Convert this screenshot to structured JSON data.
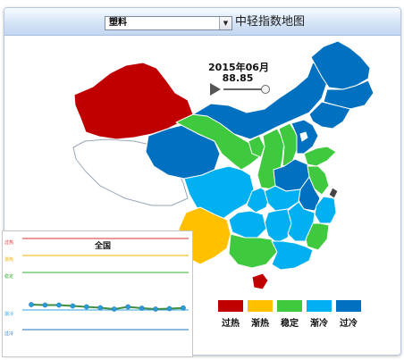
{
  "header": {
    "category_selected": "塑料",
    "title": "中轻指数地图"
  },
  "timeline": {
    "period": "2015年06月",
    "index_value": "88.85",
    "progress": 1.0
  },
  "colors": {
    "overheat": "#c00000",
    "warming": "#ffc000",
    "stable": "#3ec93e",
    "cooling": "#00b0f0",
    "overcool": "#0070c0",
    "unmapped": "#ffffff",
    "border": "#ffffff",
    "sea_islands": "#0070c0"
  },
  "legend": [
    {
      "label": "过热",
      "color": "#c00000"
    },
    {
      "label": "渐热",
      "color": "#ffc000"
    },
    {
      "label": "稳定",
      "color": "#3ec93e"
    },
    {
      "label": "渐冷",
      "color": "#00b0f0"
    },
    {
      "label": "过冷",
      "color": "#0070c0"
    }
  ],
  "mini_chart": {
    "title": "全国",
    "bands": [
      {
        "label": "过热",
        "color": "#e03030"
      },
      {
        "label": "渐热",
        "color": "#f0b000"
      },
      {
        "label": "稳定",
        "color": "#30b030"
      },
      {
        "label": "渐冷",
        "color": "#2fa0e0"
      },
      {
        "label": "过冷",
        "color": "#1e6fc0"
      }
    ],
    "series": {
      "values": [
        89.6,
        89.5,
        89.5,
        89.3,
        89.1,
        88.9,
        88.6,
        89.1,
        88.8,
        88.6,
        88.7,
        88.85
      ]
    }
  },
  "map_regions": [
    {
      "name": "xinjiang",
      "level": "overheat"
    },
    {
      "name": "tibet",
      "level": "unmapped"
    },
    {
      "name": "qinghai",
      "level": "overcool"
    },
    {
      "name": "gansu",
      "level": "stable"
    },
    {
      "name": "inner-mongolia",
      "level": "overcool"
    },
    {
      "name": "heilongjiang",
      "level": "overcool"
    },
    {
      "name": "jilin",
      "level": "overcool"
    },
    {
      "name": "liaoning",
      "level": "overcool"
    },
    {
      "name": "ningxia",
      "level": "stable"
    },
    {
      "name": "shaanxi",
      "level": "stable"
    },
    {
      "name": "shanxi",
      "level": "stable"
    },
    {
      "name": "hebei",
      "level": "overcool"
    },
    {
      "name": "beijing",
      "level": "unmapped"
    },
    {
      "name": "shandong",
      "level": "stable"
    },
    {
      "name": "henan",
      "level": "overcool"
    },
    {
      "name": "jiangsu",
      "level": "stable"
    },
    {
      "name": "anhui",
      "level": "overcool"
    },
    {
      "name": "shanghai",
      "level": "unmapped"
    },
    {
      "name": "zhejiang",
      "level": "cooling"
    },
    {
      "name": "sichuan",
      "level": "cooling"
    },
    {
      "name": "chongqing",
      "level": "cooling"
    },
    {
      "name": "hubei",
      "level": "cooling"
    },
    {
      "name": "hunan",
      "level": "cooling"
    },
    {
      "name": "jiangxi",
      "level": "cooling"
    },
    {
      "name": "fujian",
      "level": "stable"
    },
    {
      "name": "yunnan",
      "level": "warming"
    },
    {
      "name": "guizhou",
      "level": "cooling"
    },
    {
      "name": "guangxi",
      "level": "stable"
    },
    {
      "name": "guangdong",
      "level": "cooling"
    },
    {
      "name": "hainan",
      "level": "overheat"
    },
    {
      "name": "taiwan",
      "level": "unmapped"
    }
  ]
}
